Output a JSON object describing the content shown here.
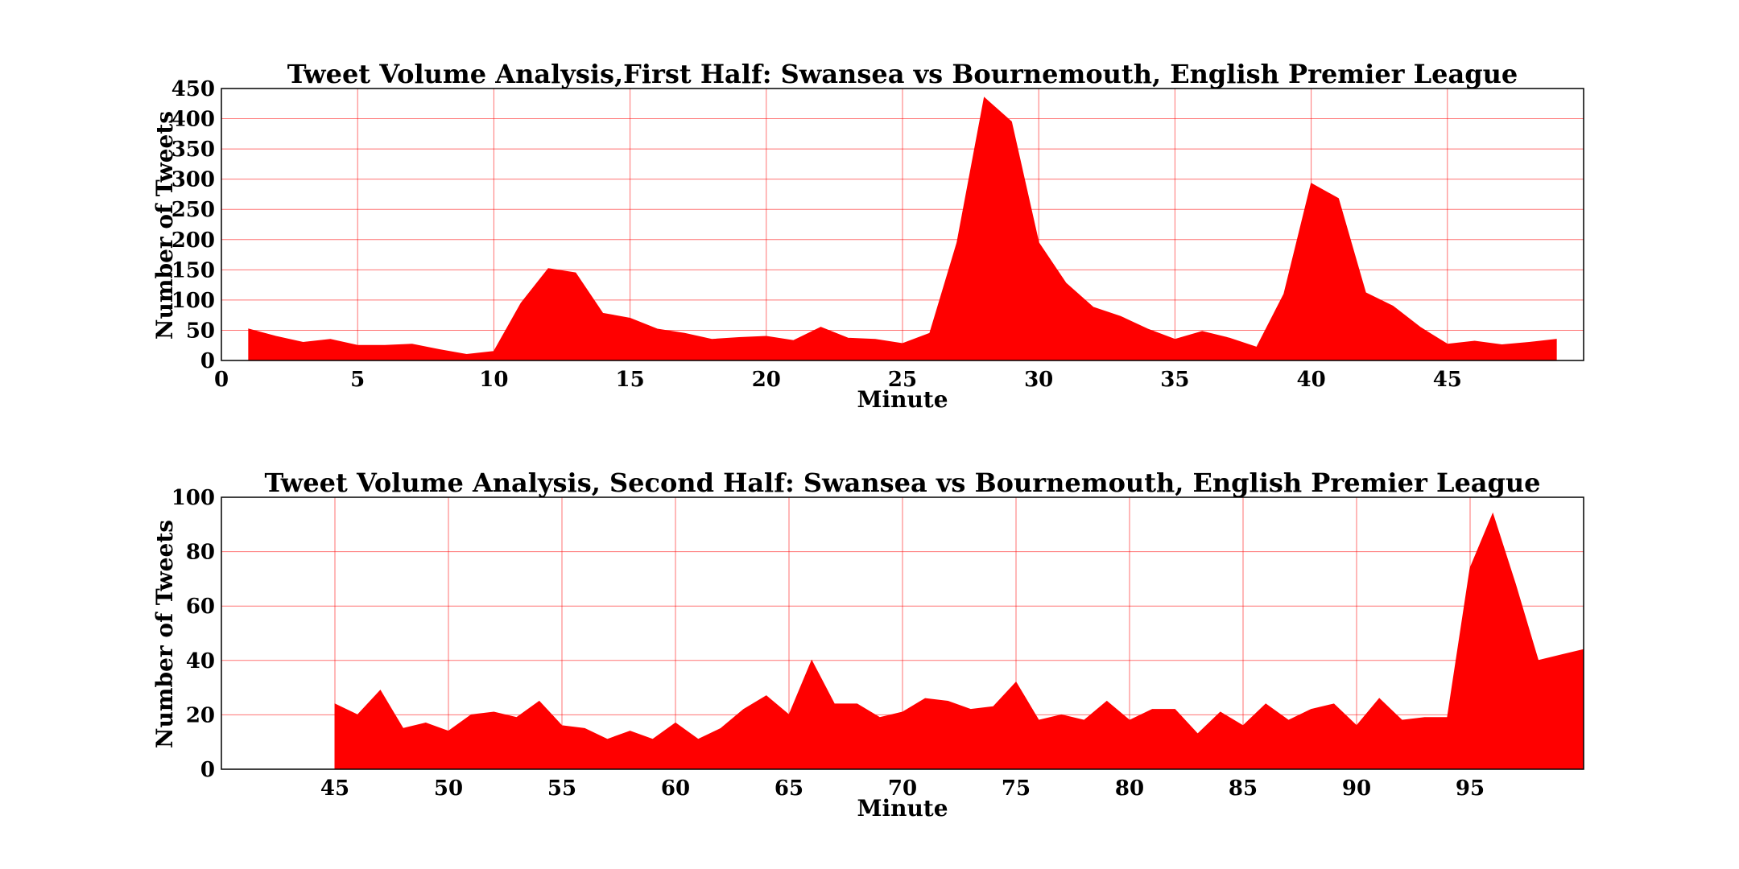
{
  "chart_data": [
    {
      "type": "area",
      "title": "Tweet Volume Analysis,First Half: Swansea vs Bournemouth, English Premier League",
      "xlabel": "Minute",
      "ylabel": "Number of Tweets",
      "xlim": [
        0,
        50
      ],
      "ylim": [
        0,
        450
      ],
      "xticks": [
        0,
        5,
        10,
        15,
        20,
        25,
        30,
        35,
        40,
        45
      ],
      "yticks": [
        0,
        50,
        100,
        150,
        200,
        250,
        300,
        350,
        400,
        450
      ],
      "grid": true,
      "fill_color": "#ff0000",
      "grid_color": "#ff0000",
      "series": [
        {
          "x": [
            1,
            2,
            3,
            4,
            5,
            6,
            7,
            8,
            9,
            10,
            11,
            12,
            13,
            14,
            15,
            16,
            17,
            18,
            19,
            20,
            21,
            22,
            23,
            24,
            25,
            26,
            27,
            28,
            29,
            30,
            31,
            32,
            33,
            34,
            35,
            36,
            37,
            38,
            39,
            40,
            41,
            42,
            43,
            44,
            45,
            46,
            47,
            48,
            49
          ],
          "values": [
            52,
            40,
            30,
            35,
            25,
            25,
            27,
            18,
            10,
            15,
            95,
            152,
            145,
            78,
            70,
            52,
            45,
            35,
            38,
            40,
            33,
            55,
            37,
            35,
            28,
            45,
            195,
            435,
            395,
            195,
            128,
            88,
            73,
            52,
            35,
            48,
            37,
            22,
            110,
            293,
            268,
            112,
            90,
            55,
            27,
            32,
            26,
            30,
            35
          ]
        }
      ]
    },
    {
      "type": "area",
      "title": "Tweet Volume Analysis, Second Half: Swansea vs Bournemouth, English Premier League",
      "xlabel": "Minute",
      "ylabel": "Number of Tweets",
      "xlim": [
        40,
        100
      ],
      "ylim": [
        0,
        100
      ],
      "xticks": [
        45,
        50,
        55,
        60,
        65,
        70,
        75,
        80,
        85,
        90,
        95
      ],
      "yticks": [
        0,
        20,
        40,
        60,
        80,
        100
      ],
      "grid": true,
      "fill_color": "#ff0000",
      "grid_color": "#ff0000",
      "series": [
        {
          "x": [
            45,
            46,
            47,
            48,
            49,
            50,
            51,
            52,
            53,
            54,
            55,
            56,
            57,
            58,
            59,
            60,
            61,
            62,
            63,
            64,
            65,
            66,
            67,
            68,
            69,
            70,
            71,
            72,
            73,
            74,
            75,
            76,
            77,
            78,
            79,
            80,
            81,
            82,
            83,
            84,
            85,
            86,
            87,
            88,
            89,
            90,
            91,
            92,
            93,
            94,
            95,
            96,
            97,
            98,
            99,
            100
          ],
          "values": [
            24,
            20,
            29,
            15,
            17,
            14,
            20,
            21,
            19,
            25,
            16,
            15,
            11,
            14,
            11,
            17,
            11,
            15,
            22,
            27,
            20,
            40,
            24,
            24,
            19,
            21,
            26,
            25,
            22,
            23,
            32,
            18,
            20,
            18,
            25,
            18,
            22,
            22,
            13,
            21,
            16,
            24,
            18,
            22,
            24,
            16,
            26,
            18,
            19,
            19,
            74,
            94,
            68,
            40,
            42,
            44
          ]
        }
      ]
    }
  ]
}
